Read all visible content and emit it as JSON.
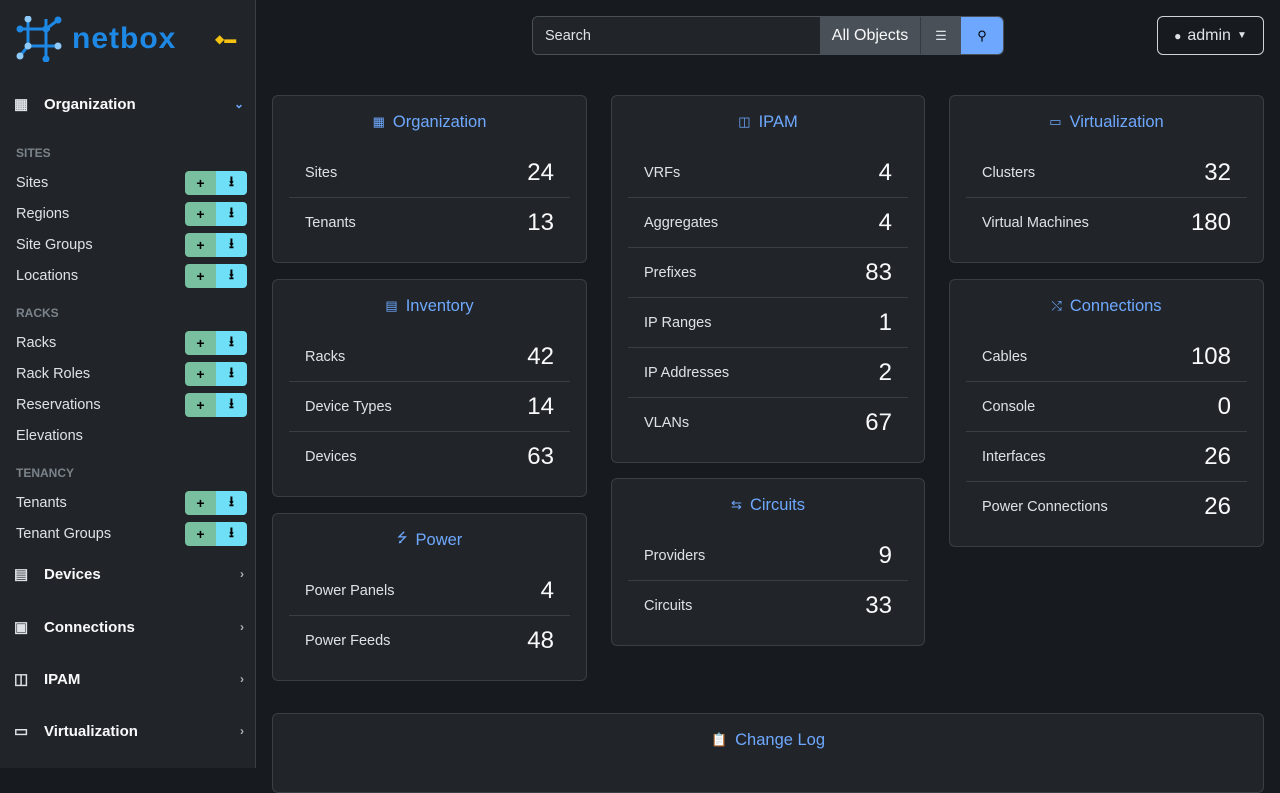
{
  "brand": "netbox",
  "sidebar": {
    "org_label": "Organization",
    "sections": [
      {
        "title": "SITES",
        "items": [
          "Sites",
          "Regions",
          "Site Groups",
          "Locations"
        ]
      },
      {
        "title": "RACKS",
        "items": [
          "Racks",
          "Rack Roles",
          "Reservations",
          "Elevations"
        ]
      },
      {
        "title": "TENANCY",
        "items": [
          "Tenants",
          "Tenant Groups"
        ]
      }
    ],
    "menus": [
      "Devices",
      "Connections",
      "IPAM",
      "Virtualization"
    ]
  },
  "search": {
    "placeholder": "Search",
    "scope": "All Objects"
  },
  "user": {
    "name": "admin"
  },
  "cards": {
    "organization": {
      "title": "Organization",
      "rows": [
        {
          "label": "Sites",
          "value": "24"
        },
        {
          "label": "Tenants",
          "value": "13"
        }
      ]
    },
    "inventory": {
      "title": "Inventory",
      "rows": [
        {
          "label": "Racks",
          "value": "42"
        },
        {
          "label": "Device Types",
          "value": "14"
        },
        {
          "label": "Devices",
          "value": "63"
        }
      ]
    },
    "power": {
      "title": "Power",
      "rows": [
        {
          "label": "Power Panels",
          "value": "4"
        },
        {
          "label": "Power Feeds",
          "value": "48"
        }
      ]
    },
    "ipam": {
      "title": "IPAM",
      "rows": [
        {
          "label": "VRFs",
          "value": "4"
        },
        {
          "label": "Aggregates",
          "value": "4"
        },
        {
          "label": "Prefixes",
          "value": "83"
        },
        {
          "label": "IP Ranges",
          "value": "1"
        },
        {
          "label": "IP Addresses",
          "value": "2"
        },
        {
          "label": "VLANs",
          "value": "67"
        }
      ]
    },
    "circuits": {
      "title": "Circuits",
      "rows": [
        {
          "label": "Providers",
          "value": "9"
        },
        {
          "label": "Circuits",
          "value": "33"
        }
      ]
    },
    "virtualization": {
      "title": "Virtualization",
      "rows": [
        {
          "label": "Clusters",
          "value": "32"
        },
        {
          "label": "Virtual Machines",
          "value": "180"
        }
      ]
    },
    "connections": {
      "title": "Connections",
      "rows": [
        {
          "label": "Cables",
          "value": "108"
        },
        {
          "label": "Console",
          "value": "0"
        },
        {
          "label": "Interfaces",
          "value": "26"
        },
        {
          "label": "Power Connections",
          "value": "26"
        }
      ]
    },
    "changelog": {
      "title": "Change Log"
    }
  }
}
